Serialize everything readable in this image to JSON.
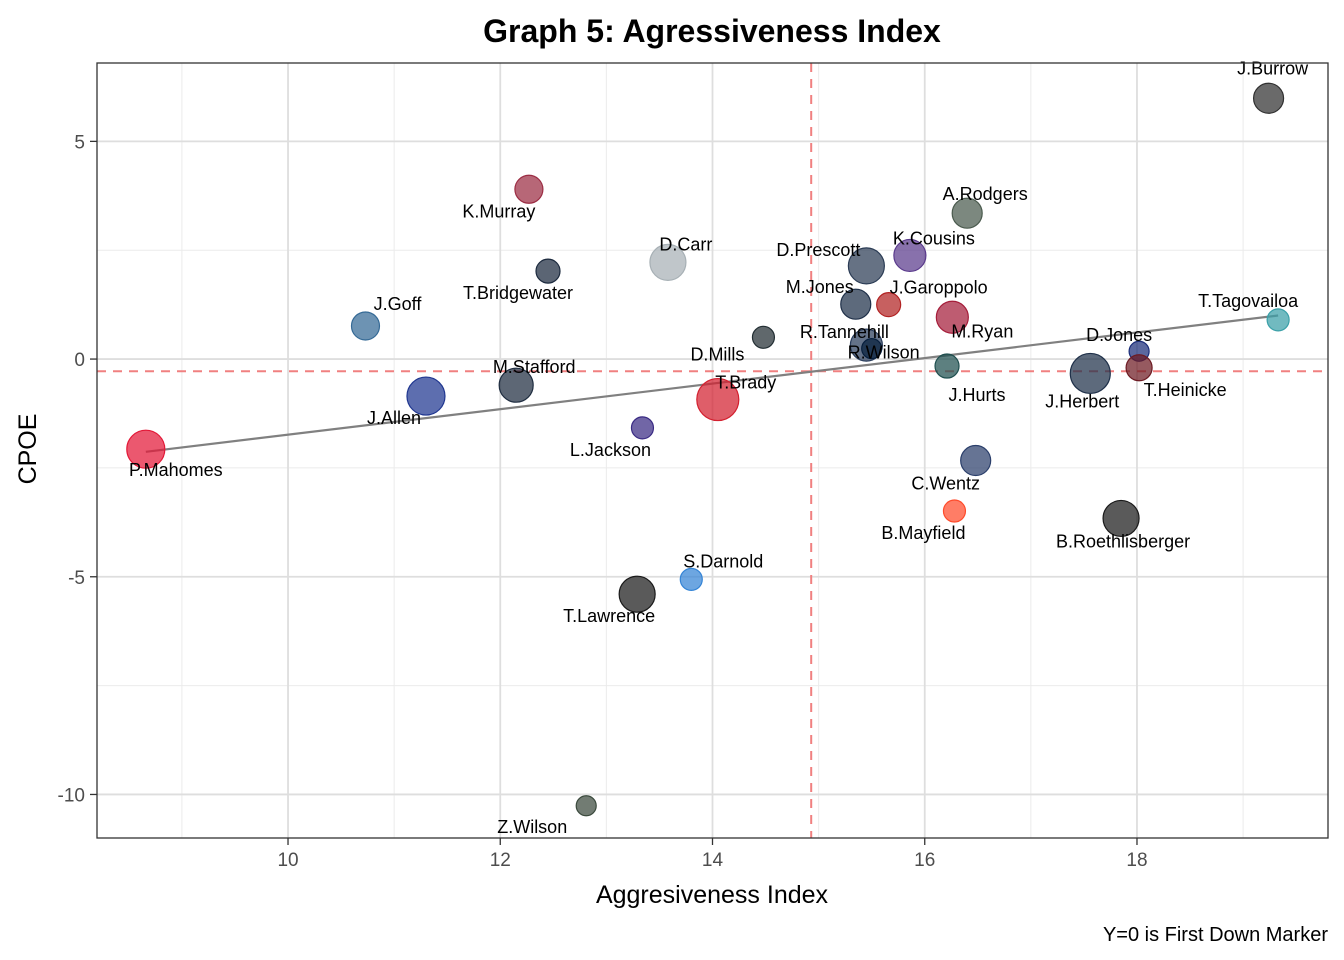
{
  "chart_data": {
    "type": "scatter",
    "title": "Graph 5: Agressiveness Index",
    "xlabel": "Aggresiveness Index",
    "ylabel": "CPOE",
    "caption": "Y=0 is First Down Marker",
    "xlim": [
      8.2,
      19.8
    ],
    "ylim": [
      -11.0,
      6.8
    ],
    "x_ticks": [
      10,
      12,
      14,
      16,
      18
    ],
    "x_tick_labels": [
      "10",
      "12",
      "14",
      "16",
      "18"
    ],
    "y_ticks": [
      -10,
      -5,
      0,
      5
    ],
    "y_tick_labels": [
      "-10",
      "-5",
      "0",
      "5"
    ],
    "grid": true,
    "reference_lines": {
      "vline_x": 14.93,
      "hline_y": -0.28,
      "color": "#f08080"
    },
    "trend_line": {
      "x": [
        8.66,
        19.33
      ],
      "y": [
        -2.13,
        1.0
      ],
      "color": "#808080"
    },
    "points": [
      {
        "name": "J.Burrow",
        "x": 19.24,
        "y": 5.99,
        "size": 15,
        "color": "#303030"
      },
      {
        "name": "K.Murray",
        "x": 12.27,
        "y": 3.9,
        "size": 14,
        "color": "#9b2c43"
      },
      {
        "name": "A.Rodgers",
        "x": 16.4,
        "y": 3.35,
        "size": 15,
        "color": "#4a5a4d"
      },
      {
        "name": "K.Cousins",
        "x": 15.86,
        "y": 2.38,
        "size": 16,
        "color": "#5a3a8c"
      },
      {
        "name": "D.Carr",
        "x": 13.58,
        "y": 2.22,
        "size": 18,
        "color": "#a7b0b5"
      },
      {
        "name": "D.Prescott",
        "x": 15.45,
        "y": 2.14,
        "size": 18,
        "color": "#2b3c55"
      },
      {
        "name": "T.Bridgewater",
        "x": 12.45,
        "y": 2.02,
        "size": 12,
        "color": "#1c2a3e"
      },
      {
        "name": "M.Jones",
        "x": 15.35,
        "y": 1.26,
        "size": 15,
        "color": "#1f3049"
      },
      {
        "name": "J.Garoppolo",
        "x": 15.66,
        "y": 1.25,
        "size": 12,
        "color": "#b22222"
      },
      {
        "name": "M.Ryan",
        "x": 16.26,
        "y": 0.96,
        "size": 16,
        "color": "#a51d3a"
      },
      {
        "name": "J.Goff",
        "x": 10.73,
        "y": 0.76,
        "size": 14,
        "color": "#356a96"
      },
      {
        "name": "T.Tagovailoa",
        "x": 19.33,
        "y": 0.9,
        "size": 11,
        "color": "#3aa0a8"
      },
      {
        "name": "D.Mills",
        "x": 14.48,
        "y": 0.5,
        "size": 11,
        "color": "#222e33"
      },
      {
        "name": "R.Tannehill",
        "x": 15.45,
        "y": 0.32,
        "size": 16,
        "color": "#2a3d5c"
      },
      {
        "name": "R.Wilson",
        "x": 15.5,
        "y": 0.24,
        "size": 10,
        "color": "#061e3c"
      },
      {
        "name": "D.Jones",
        "x": 18.02,
        "y": 0.18,
        "size": 10,
        "color": "#1c2e7a"
      },
      {
        "name": "J.Hurts",
        "x": 16.21,
        "y": -0.16,
        "size": 12,
        "color": "#1f4f4f"
      },
      {
        "name": "J.Herbert",
        "x": 17.56,
        "y": -0.33,
        "size": 20,
        "color": "#1f3049"
      },
      {
        "name": "T.Heinicke",
        "x": 18.02,
        "y": -0.2,
        "size": 13,
        "color": "#6d1b23"
      },
      {
        "name": "M.Stafford",
        "x": 12.15,
        "y": -0.6,
        "size": 17,
        "color": "#1f2d40"
      },
      {
        "name": "J.Allen",
        "x": 11.3,
        "y": -0.85,
        "size": 19,
        "color": "#1f3690"
      },
      {
        "name": "T.Brady",
        "x": 14.05,
        "y": -0.93,
        "size": 21,
        "color": "#d3202f"
      },
      {
        "name": "L.Jackson",
        "x": 13.34,
        "y": -1.58,
        "size": 11,
        "color": "#3a2b84"
      },
      {
        "name": "P.Mahomes",
        "x": 8.66,
        "y": -2.07,
        "size": 19,
        "color": "#e31837"
      },
      {
        "name": "C.Wentz",
        "x": 16.48,
        "y": -2.33,
        "size": 15,
        "color": "#2b3f6b"
      },
      {
        "name": "B.Mayfield",
        "x": 16.28,
        "y": -3.49,
        "size": 11,
        "color": "#ff4b2b"
      },
      {
        "name": "B.Roethlisberger",
        "x": 17.85,
        "y": -3.66,
        "size": 18,
        "color": "#1a1a1a"
      },
      {
        "name": "S.Darnold",
        "x": 13.8,
        "y": -5.06,
        "size": 11,
        "color": "#3484d6"
      },
      {
        "name": "T.Lawrence",
        "x": 13.29,
        "y": -5.4,
        "size": 18,
        "color": "#1a1a1a"
      },
      {
        "name": "Z.Wilson",
        "x": 12.81,
        "y": -10.26,
        "size": 10,
        "color": "#3b4a3d"
      }
    ]
  }
}
